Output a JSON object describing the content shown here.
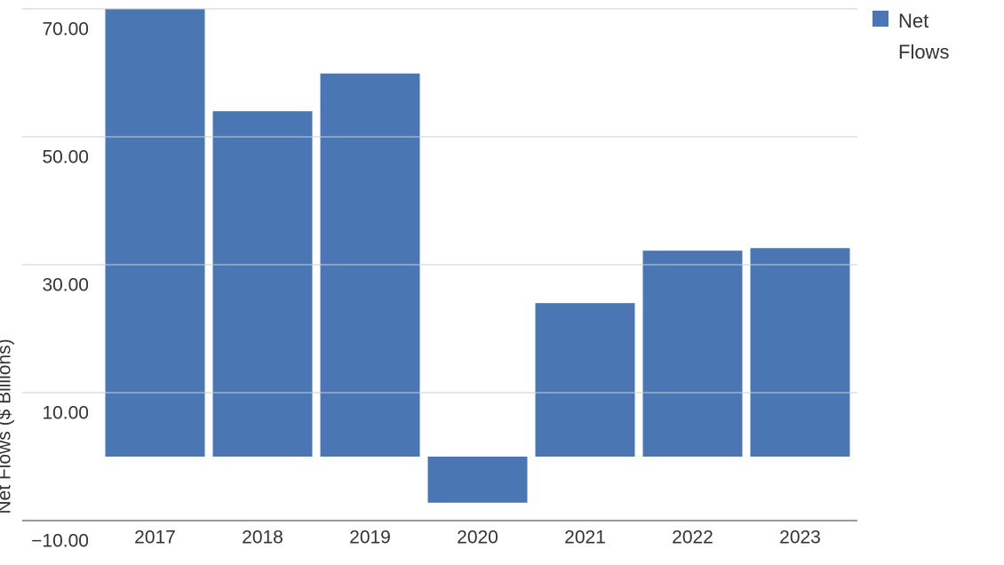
{
  "chart_data": {
    "type": "bar",
    "y_label": "Net Flows ($ Billions)",
    "categories": [
      "2017",
      "2018",
      "2019",
      "2020",
      "2021",
      "2022",
      "2023"
    ],
    "series": [
      {
        "name": "Net Flows",
        "color": "#4a77b4",
        "values": [
          70.0,
          54.0,
          59.9,
          -7.2,
          24.0,
          32.2,
          32.6
        ]
      }
    ],
    "ylim": [
      -10,
      70
    ],
    "yticks": [
      {
        "value": -10,
        "label": "−10.00"
      },
      {
        "value": 10,
        "label": "10.00"
      },
      {
        "value": 30,
        "label": "30.00"
      },
      {
        "value": 50,
        "label": "50.00"
      },
      {
        "value": 70,
        "label": "70.00"
      }
    ],
    "grid": true,
    "legend": "top-right"
  }
}
